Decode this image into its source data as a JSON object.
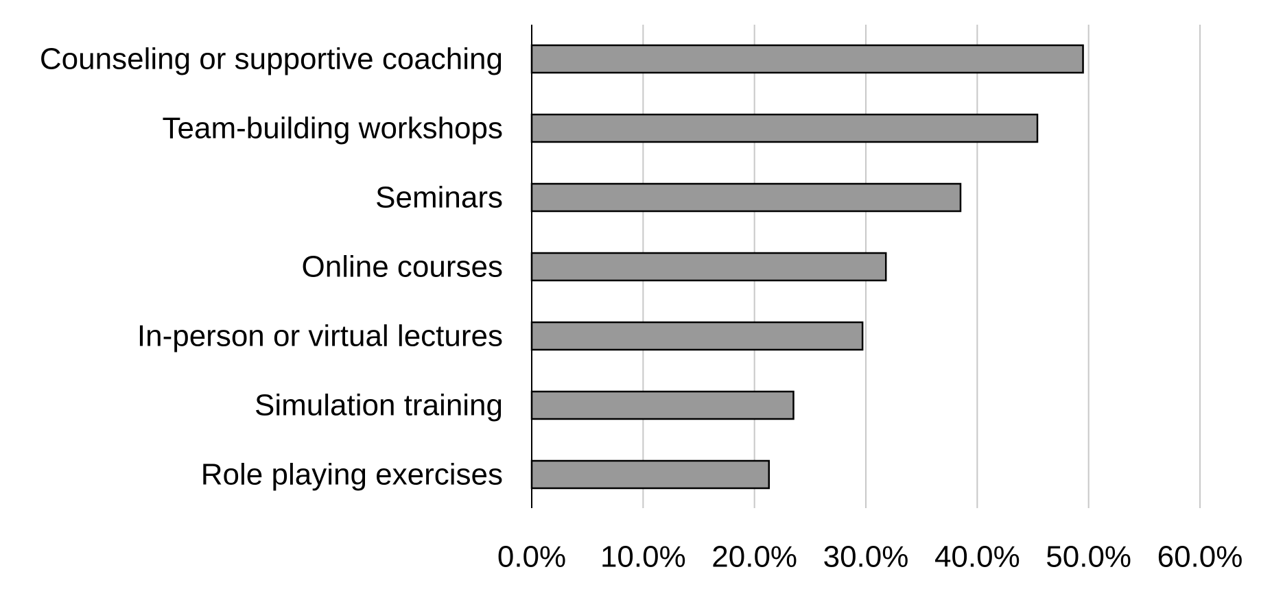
{
  "chart_data": {
    "type": "bar",
    "orientation": "horizontal",
    "categories": [
      "Counseling or supportive coaching",
      "Team-building workshops",
      "Seminars",
      "Online courses",
      "In-person or virtual lectures",
      "Simulation training",
      "Role playing exercises"
    ],
    "values": [
      49.5,
      45.4,
      38.5,
      31.8,
      29.7,
      23.5,
      21.3
    ],
    "value_unit": "%",
    "xlim": [
      0,
      60
    ],
    "x_ticks": [
      0,
      10,
      20,
      30,
      40,
      50,
      60
    ],
    "x_tick_labels": [
      "0.0%",
      "10.0%",
      "20.0%",
      "30.0%",
      "40.0%",
      "50.0%",
      "60.0%"
    ],
    "title": "",
    "xlabel": "",
    "ylabel": "",
    "grid": "vertical",
    "legend": "none",
    "colors": {
      "bar_fill": "#999999",
      "bar_stroke": "#000000",
      "grid": "#c8c8c8",
      "axis": "#000000",
      "text": "#000000"
    }
  }
}
